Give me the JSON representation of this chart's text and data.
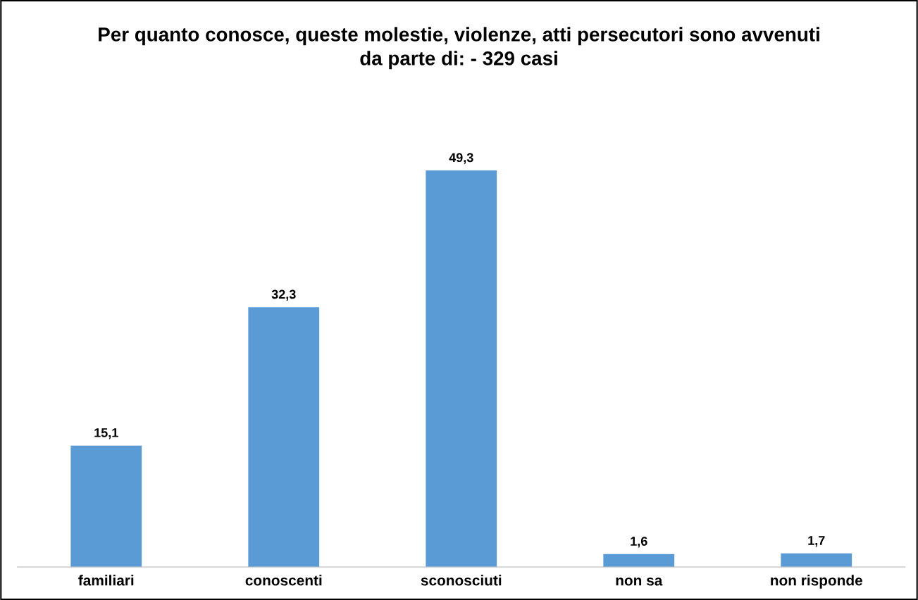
{
  "chart_data": {
    "type": "bar",
    "title": "Per quanto conosce, queste molestie, violenze, atti persecutori sono avvenuti\nda parte di: - 329 casi",
    "categories": [
      "familiari",
      "conoscenti",
      "sconosciuti",
      "non sa",
      "non risponde"
    ],
    "values": [
      15.1,
      32.3,
      49.3,
      1.6,
      1.7
    ],
    "value_labels": [
      "15,1",
      "32,3",
      "49,3",
      "1,6",
      "1,7"
    ],
    "color": "#5b9bd5",
    "grid": false,
    "legend": false
  }
}
